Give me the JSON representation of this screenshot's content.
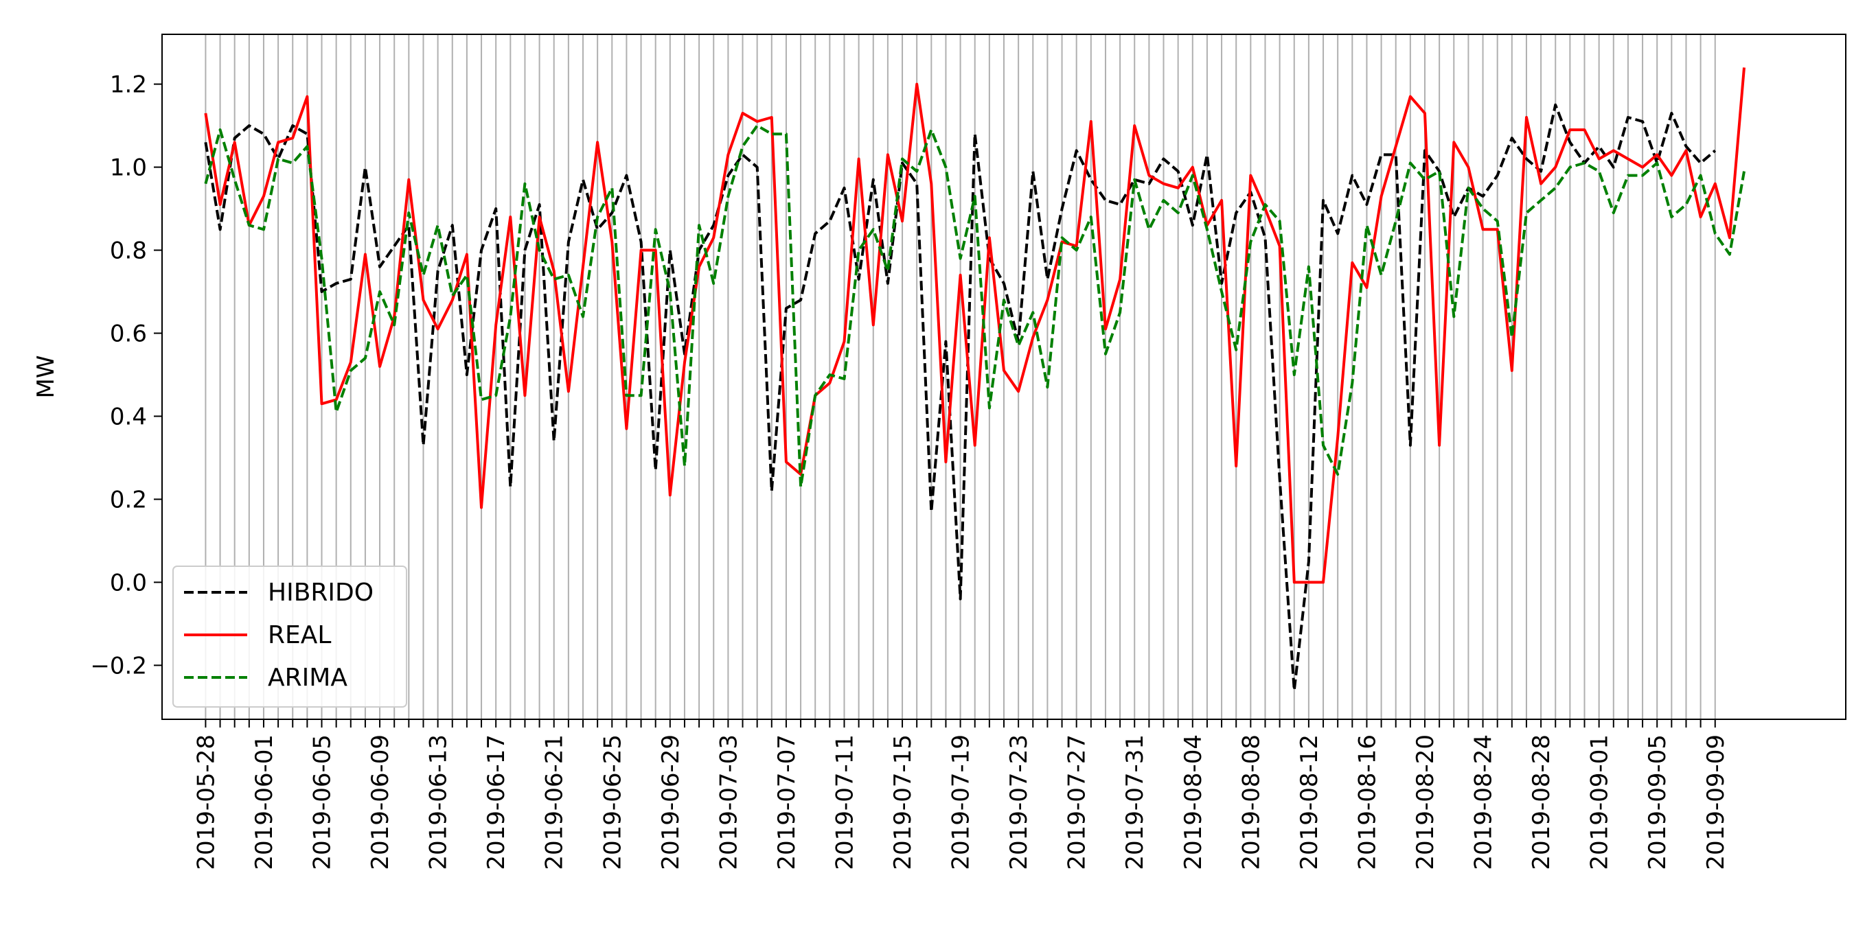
{
  "chart_data": {
    "type": "line",
    "title": "",
    "xlabel": "",
    "ylabel": "MW",
    "x_start": "2019-05-28",
    "x_tick_labels": [
      "2019-05-28",
      "2019-06-01",
      "2019-06-05",
      "2019-06-09",
      "2019-06-13",
      "2019-06-17",
      "2019-06-21",
      "2019-06-25",
      "2019-06-29",
      "2019-07-03",
      "2019-07-07",
      "2019-07-11",
      "2019-07-15",
      "2019-07-19",
      "2019-07-23",
      "2019-07-27",
      "2019-07-31",
      "2019-08-04",
      "2019-08-08",
      "2019-08-12",
      "2019-08-16",
      "2019-08-20",
      "2019-08-24",
      "2019-08-28",
      "2019-09-01",
      "2019-09-05",
      "2019-09-09"
    ],
    "y_ticks": [
      -0.2,
      0.0,
      0.2,
      0.4,
      0.6,
      0.8,
      1.0,
      1.2
    ],
    "y_tick_labels": [
      "−0.2",
      "0.0",
      "0.2",
      "0.4",
      "0.6",
      "0.8",
      "1.0",
      "1.2"
    ],
    "ylim": [
      -0.33,
      1.32
    ],
    "xlim": [
      "2019-05-25",
      "2019-09-18"
    ],
    "grid": "vertical lines at every day",
    "legend_position": "lower-left",
    "series": [
      {
        "name": "HIBRIDO",
        "color": "#000000",
        "style": "dashed",
        "values": [
          1.06,
          0.85,
          1.07,
          1.1,
          1.08,
          1.02,
          1.1,
          1.08,
          0.7,
          0.72,
          0.73,
          1.0,
          0.76,
          0.81,
          0.86,
          0.33,
          0.75,
          0.86,
          0.5,
          0.8,
          0.9,
          0.23,
          0.8,
          0.91,
          0.34,
          0.82,
          0.97,
          0.85,
          0.89,
          0.98,
          0.82,
          0.27,
          0.8,
          0.55,
          0.8,
          0.86,
          0.98,
          1.03,
          1.0,
          0.22,
          0.66,
          0.68,
          0.84,
          0.87,
          0.95,
          0.73,
          0.97,
          0.72,
          1.01,
          0.96,
          0.17,
          0.58,
          -0.04,
          1.08,
          0.78,
          0.72,
          0.58,
          0.99,
          0.73,
          0.9,
          1.04,
          0.97,
          0.92,
          0.91,
          0.97,
          0.96,
          1.02,
          0.99,
          0.86,
          1.03,
          0.72,
          0.89,
          0.94,
          0.83,
          0.25,
          -0.26,
          0.05,
          0.92,
          0.84,
          0.98,
          0.91,
          1.03,
          1.03,
          0.33,
          1.04,
          0.99,
          0.88,
          0.95,
          0.93,
          0.98,
          1.07,
          1.02,
          0.99,
          1.15,
          1.06,
          1.01,
          1.05,
          1.0,
          1.12,
          1.11,
          1.01,
          1.13,
          1.05,
          1.01,
          1.04
        ]
      },
      {
        "name": "REAL",
        "color": "#ff0000",
        "style": "solid",
        "values": [
          1.13,
          0.91,
          1.06,
          0.86,
          0.93,
          1.06,
          1.07,
          1.17,
          0.43,
          0.44,
          0.53,
          0.79,
          0.52,
          0.64,
          0.97,
          0.68,
          0.61,
          0.68,
          0.79,
          0.18,
          0.62,
          0.88,
          0.45,
          0.88,
          0.75,
          0.46,
          0.76,
          1.06,
          0.82,
          0.37,
          0.8,
          0.8,
          0.21,
          0.53,
          0.76,
          0.83,
          1.03,
          1.13,
          1.11,
          1.12,
          0.29,
          0.26,
          0.45,
          0.48,
          0.58,
          1.02,
          0.62,
          1.03,
          0.87,
          1.2,
          0.96,
          0.29,
          0.74,
          0.33,
          0.83,
          0.51,
          0.46,
          0.59,
          0.68,
          0.82,
          0.81,
          1.11,
          0.61,
          0.73,
          1.1,
          0.98,
          0.96,
          0.95,
          1.0,
          0.86,
          0.92,
          0.28,
          0.98,
          0.9,
          0.81,
          0.0,
          0.0,
          0.0,
          0.35,
          0.77,
          0.71,
          0.93,
          1.05,
          1.17,
          1.13,
          0.33,
          1.06,
          1.0,
          0.85,
          0.85,
          0.51,
          1.12,
          0.96,
          1.0,
          1.09,
          1.09,
          1.02,
          1.04,
          1.02,
          1.0,
          1.03,
          0.98,
          1.04,
          0.88,
          0.96,
          0.83,
          1.24
        ]
      },
      {
        "name": "ARIMA",
        "color": "#008000",
        "style": "dashed",
        "values": [
          0.96,
          1.09,
          0.97,
          0.86,
          0.85,
          1.02,
          1.01,
          1.05,
          0.78,
          0.41,
          0.51,
          0.54,
          0.7,
          0.62,
          0.89,
          0.74,
          0.86,
          0.69,
          0.74,
          0.44,
          0.45,
          0.64,
          0.96,
          0.8,
          0.73,
          0.74,
          0.64,
          0.88,
          0.95,
          0.45,
          0.45,
          0.85,
          0.7,
          0.28,
          0.86,
          0.72,
          0.93,
          1.05,
          1.1,
          1.08,
          1.08,
          0.23,
          0.45,
          0.5,
          0.49,
          0.8,
          0.85,
          0.75,
          1.02,
          0.99,
          1.09,
          1.0,
          0.78,
          0.93,
          0.42,
          0.68,
          0.57,
          0.65,
          0.47,
          0.83,
          0.8,
          0.88,
          0.55,
          0.65,
          0.97,
          0.85,
          0.92,
          0.89,
          0.98,
          0.85,
          0.7,
          0.56,
          0.82,
          0.91,
          0.87,
          0.5,
          0.76,
          0.33,
          0.26,
          0.48,
          0.86,
          0.74,
          0.87,
          1.01,
          0.97,
          0.99,
          0.64,
          0.95,
          0.9,
          0.87,
          0.59,
          0.89,
          0.92,
          0.95,
          1.0,
          1.01,
          0.99,
          0.89,
          0.98,
          0.98,
          1.01,
          0.88,
          0.91,
          0.98,
          0.84,
          0.79,
          0.99
        ]
      }
    ]
  }
}
